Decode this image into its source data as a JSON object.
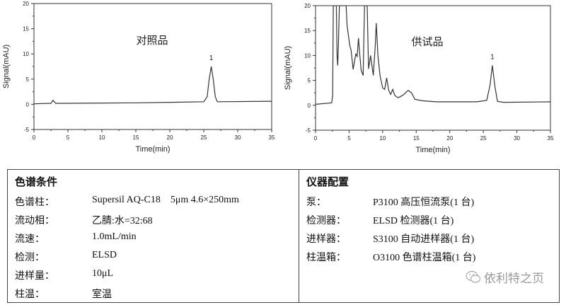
{
  "chart_data": [
    {
      "type": "line",
      "annotation": "对照品",
      "peak_label": "1",
      "peak_label_x": 26.1,
      "xlabel": "Time(min)",
      "ylabel": "Signal(mAU)",
      "xlim": [
        0,
        35
      ],
      "ylim": [
        -5,
        20
      ],
      "xticks": [
        0,
        5,
        10,
        15,
        20,
        25,
        30,
        35
      ],
      "yticks": [
        -5,
        0,
        5,
        10,
        15,
        20
      ],
      "grid": false,
      "x": [
        0,
        2.5,
        2.8,
        3.2,
        4.5,
        15,
        20,
        25,
        25.5,
        25.8,
        26.1,
        26.4,
        26.7,
        27,
        35
      ],
      "y": [
        0.1,
        0.2,
        0.8,
        0.2,
        0.2,
        0.3,
        0.4,
        0.5,
        1.5,
        5,
        7.5,
        5,
        1.5,
        0.5,
        0.6
      ]
    },
    {
      "type": "line",
      "annotation": "供试品",
      "peak_label": "1",
      "peak_label_x": 26.35,
      "xlabel": "Time(min)",
      "ylabel": "Signal(mAU)",
      "xlim": [
        0,
        35
      ],
      "ylim": [
        -5,
        20
      ],
      "xticks": [
        0,
        5,
        10,
        15,
        20,
        25,
        30,
        35
      ],
      "yticks": [
        -5,
        0,
        5,
        10,
        15,
        20
      ],
      "grid": false,
      "x": [
        0,
        2.4,
        2.55,
        2.65,
        3.1,
        3.2,
        3.3,
        3.4,
        3.55,
        4.55,
        4.7,
        5.1,
        5.3,
        5.6,
        6.0,
        6.2,
        6.4,
        6.6,
        6.8,
        7.1,
        7.3,
        7.7,
        7.9,
        8.2,
        8.4,
        8.6,
        8.9,
        9.05,
        9.3,
        9.6,
        10,
        10.3,
        10.6,
        10.9,
        11.2,
        11.5,
        11.8,
        12.3,
        13,
        13.8,
        14.3,
        14.8,
        16,
        18,
        24,
        25.5,
        26,
        26.35,
        26.7,
        27.1,
        28,
        35
      ],
      "y": [
        0.2,
        0.5,
        2,
        20,
        20,
        10,
        8,
        12,
        20,
        20,
        16,
        12,
        11,
        7.2,
        10.3,
        9.8,
        13.5,
        10,
        7,
        6,
        20,
        20,
        7.3,
        10,
        8,
        6,
        12,
        16.5,
        10,
        6,
        3.5,
        3.2,
        5.5,
        3,
        2.2,
        3.2,
        2,
        1.5,
        2,
        3,
        2.5,
        1.2,
        0.9,
        0.7,
        0.7,
        1,
        4,
        8,
        4,
        0.8,
        0.6,
        0.7
      ]
    }
  ],
  "table": {
    "left": {
      "title": "色谱条件",
      "rows": [
        {
          "label": "色谱柱：",
          "value": "Supersil AQ-C18    5μm 4.6×250mm"
        },
        {
          "label": "流动相：",
          "value": "乙腈:水=32:68"
        },
        {
          "label": "流速：",
          "value": "1.0mL/min"
        },
        {
          "label": "检测：",
          "value": "ELSD"
        },
        {
          "label": "进样量：",
          "value": "10μL"
        },
        {
          "label": "柱温：",
          "value": "室温"
        }
      ]
    },
    "right": {
      "title": "仪器配置",
      "rows": [
        {
          "label": "泵：",
          "value": "P3100 高压恒流泵(1 台)"
        },
        {
          "label": "检测器：",
          "value": "ELSD 检测器(1 台)"
        },
        {
          "label": "进样器：",
          "value": "S3100 自动进样器(1 台)"
        },
        {
          "label": "柱温箱：",
          "value": "O3100 色谱柱温箱(1 台)"
        }
      ]
    }
  },
  "watermark": {
    "text": "依利特之页",
    "icon": "wechat-icon"
  },
  "colors": {
    "trace": "#333333",
    "axis": "#333333",
    "border": "#444444",
    "watermark": "#999999"
  }
}
